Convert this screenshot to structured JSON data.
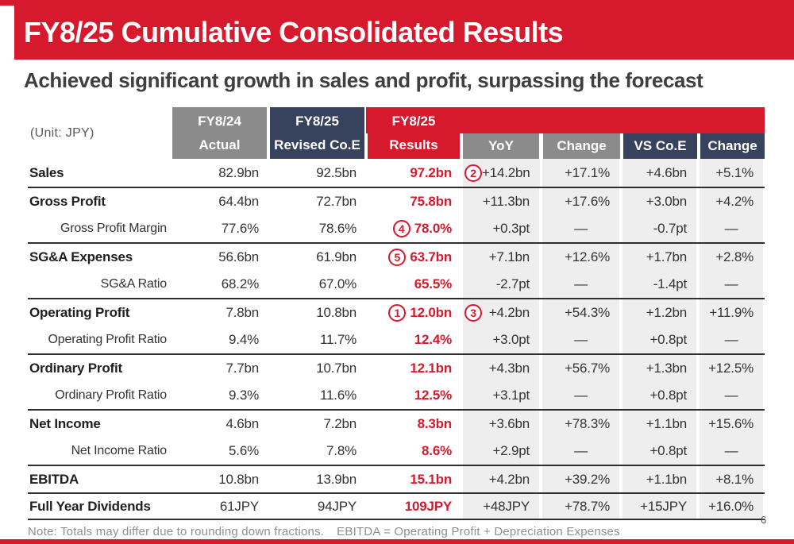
{
  "slide": {
    "title": "FY8/25 Cumulative Consolidated Results",
    "subtitle": "Achieved significant growth in sales and profit, surpassing the forecast",
    "page_number": "6",
    "note_1": "Note: Totals may differ due to rounding down fractions.",
    "note_2": "EBITDA = Operating Profit + Depreciation Expenses",
    "colors": {
      "accent_red": "#D7192D",
      "header_gray": "#8B8B8B",
      "header_navy": "#37425C",
      "comparison_cell_bg": "#EEEEEE"
    }
  },
  "table": {
    "unit_label": "(Unit: JPY)",
    "headers": {
      "fy24_top": "FY8/24",
      "fy24_bottom": "Actual",
      "coe_top": "FY8/25",
      "coe_bottom": "Revised Co.E",
      "results_top": "FY8/25",
      "results_bottom": "Results",
      "yoy": "YoY",
      "yoy_change": "Change",
      "vs_coe": "VS Co.E",
      "vs_change": "Change"
    },
    "rows": [
      {
        "label": "Sales",
        "sub": false,
        "group_start": false,
        "fy24": "82.9bn",
        "coe": "92.5bn",
        "results": "97.2bn",
        "yoy": "+14.2bn",
        "yoy_change": "+17.1%",
        "vs_coe": "+4.6bn",
        "vs_change": "+5.1%",
        "circle_yoy": "2"
      },
      {
        "label": "Gross Profit",
        "sub": false,
        "group_start": true,
        "fy24": "64.4bn",
        "coe": "72.7bn",
        "results": "75.8bn",
        "yoy": "+11.3bn",
        "yoy_change": "+17.6%",
        "vs_coe": "+3.0bn",
        "vs_change": "+4.2%"
      },
      {
        "label": "Gross Profit Margin",
        "sub": true,
        "group_start": false,
        "fy24": "77.6%",
        "coe": "78.6%",
        "results": "78.0%",
        "yoy": "+0.3pt",
        "yoy_change": "—",
        "vs_coe": "-0.7pt",
        "vs_change": "—",
        "circle_results": "4"
      },
      {
        "label": "SG&A Expenses",
        "sub": false,
        "group_start": true,
        "fy24": "56.6bn",
        "coe": "61.9bn",
        "results": "63.7bn",
        "yoy": "+7.1bn",
        "yoy_change": "+12.6%",
        "vs_coe": "+1.7bn",
        "vs_change": "+2.8%",
        "circle_results": "5"
      },
      {
        "label": "SG&A Ratio",
        "sub": true,
        "group_start": false,
        "fy24": "68.2%",
        "coe": "67.0%",
        "results": "65.5%",
        "yoy": "-2.7pt",
        "yoy_change": "—",
        "vs_coe": "-1.4pt",
        "vs_change": "—"
      },
      {
        "label": "Operating Profit",
        "sub": false,
        "group_start": true,
        "fy24": "7.8bn",
        "coe": "10.8bn",
        "results": "12.0bn",
        "yoy": "+4.2bn",
        "yoy_change": "+54.3%",
        "vs_coe": "+1.2bn",
        "vs_change": "+11.9%",
        "circle_results": "1",
        "circle_yoy": "3"
      },
      {
        "label": "Operating Profit Ratio",
        "sub": true,
        "group_start": false,
        "fy24": "9.4%",
        "coe": "11.7%",
        "results": "12.4%",
        "yoy": "+3.0pt",
        "yoy_change": "—",
        "vs_coe": "+0.8pt",
        "vs_change": "—"
      },
      {
        "label": "Ordinary Profit",
        "sub": false,
        "group_start": true,
        "fy24": "7.7bn",
        "coe": "10.7bn",
        "results": "12.1bn",
        "yoy": "+4.3bn",
        "yoy_change": "+56.7%",
        "vs_coe": "+1.3bn",
        "vs_change": "+12.5%"
      },
      {
        "label": "Ordinary Profit Ratio",
        "sub": true,
        "group_start": false,
        "fy24": "9.3%",
        "coe": "11.6%",
        "results": "12.5%",
        "yoy": "+3.1pt",
        "yoy_change": "—",
        "vs_coe": "+0.8pt",
        "vs_change": "—"
      },
      {
        "label": "Net Income",
        "sub": false,
        "group_start": true,
        "fy24": "4.6bn",
        "coe": "7.2bn",
        "results": "8.3bn",
        "yoy": "+3.6bn",
        "yoy_change": "+78.3%",
        "vs_coe": "+1.1bn",
        "vs_change": "+15.6%"
      },
      {
        "label": "Net Income Ratio",
        "sub": true,
        "group_start": false,
        "fy24": "5.6%",
        "coe": "7.8%",
        "results": "8.6%",
        "yoy": "+2.9pt",
        "yoy_change": "—",
        "vs_coe": "+0.8pt",
        "vs_change": "—"
      },
      {
        "label": "EBITDA",
        "sub": false,
        "group_start": true,
        "fy24": "10.8bn",
        "coe": "13.9bn",
        "results": "15.1bn",
        "yoy": "+4.2bn",
        "yoy_change": "+39.2%",
        "vs_coe": "+1.1bn",
        "vs_change": "+8.1%"
      },
      {
        "label": "Full Year Dividends",
        "sub": false,
        "group_start": true,
        "fy24": "61JPY",
        "coe": "94JPY",
        "results": "109JPY",
        "yoy": "+48JPY",
        "yoy_change": "+78.7%",
        "vs_coe": "+15JPY",
        "vs_change": "+16.0%"
      }
    ]
  }
}
